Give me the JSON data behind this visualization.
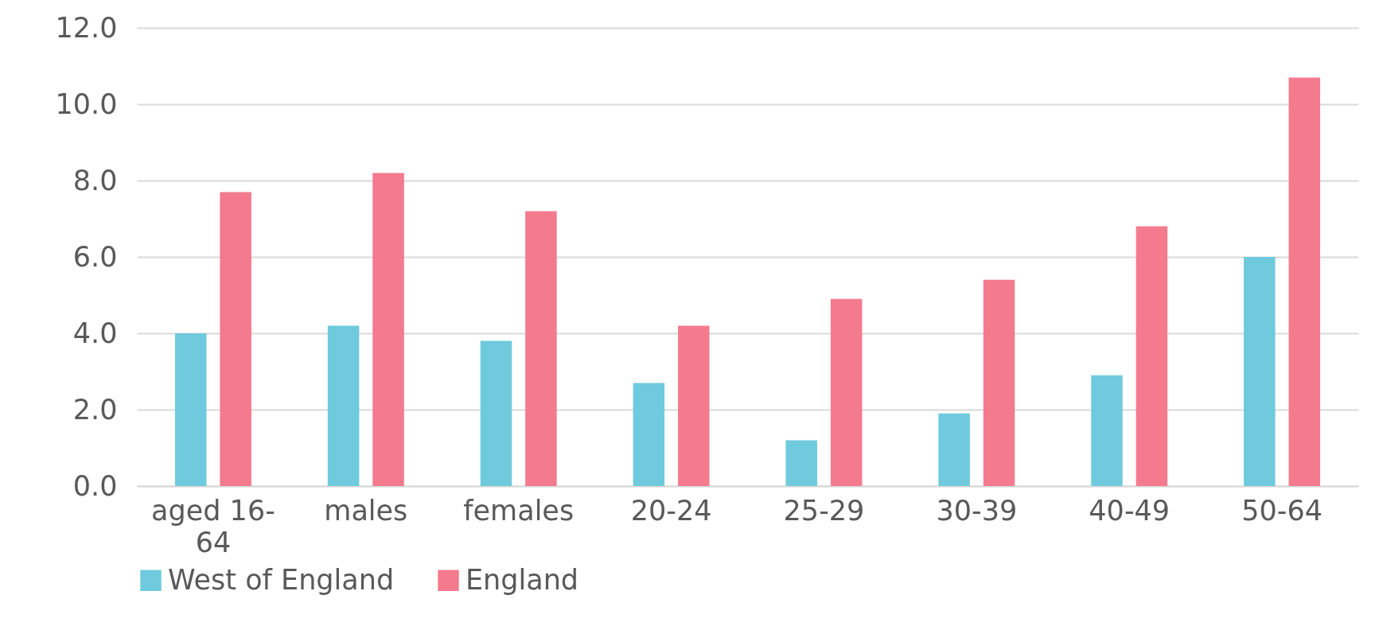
{
  "chart_data": {
    "type": "bar",
    "categories": [
      "aged 16-64",
      "males",
      "females",
      "20-24",
      "25-29",
      "30-39",
      "40-49",
      "50-64"
    ],
    "series": [
      {
        "name": "West of England",
        "color": "#6ecadc",
        "values": [
          4.0,
          4.2,
          3.8,
          2.7,
          1.2,
          1.9,
          2.9,
          6.0
        ]
      },
      {
        "name": "England",
        "color": "#f47a8e",
        "values": [
          7.7,
          8.2,
          7.2,
          4.2,
          4.9,
          5.4,
          6.8,
          10.7
        ]
      }
    ],
    "ylim": [
      0,
      12
    ],
    "yticks": [
      {
        "value": 0,
        "label": "0.0"
      },
      {
        "value": 2,
        "label": "2.0"
      },
      {
        "value": 4,
        "label": "4.0"
      },
      {
        "value": 6,
        "label": "6.0"
      },
      {
        "value": 8,
        "label": "8.0"
      },
      {
        "value": 10,
        "label": "10.0"
      },
      {
        "value": 12,
        "label": "12.0"
      }
    ],
    "grid": "y",
    "legend": "bottom"
  }
}
